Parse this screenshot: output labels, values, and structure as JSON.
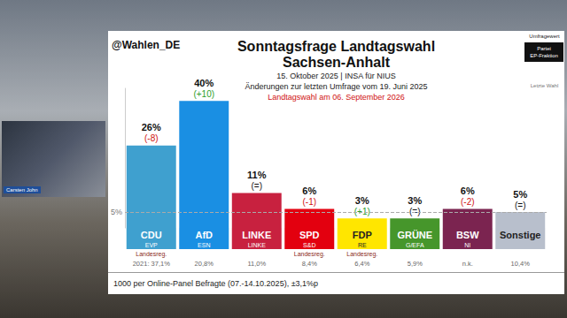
{
  "chart_data": {
    "type": "bar",
    "title": "Sonntagsfrage Landtagswahl\nSachsen-Anhalt",
    "subtitle": [
      "15. Oktober 2025 | INSA für NIUS",
      "Änderungen zur letzten Umfrage vom 19. Juni 2025"
    ],
    "note": "Landtagswahl am 06. September 2026",
    "source": "@Wahlen_DE",
    "footnote": "1000 per Online-Panel Befragte (07.-14.10.2025), ±3,1%p",
    "key": {
      "title": "Umfragewert",
      "lines": [
        "Partei",
        "EP-Fraktion"
      ],
      "footer": "Letzte Wahl"
    },
    "presenter": "Carsten John",
    "categories": [
      "CDU",
      "AfD",
      "LINKE",
      "SPD",
      "FDP",
      "GRÜNE",
      "BSW",
      "Sonstige"
    ],
    "groups": [
      "EVP",
      "ESN",
      "LINKE",
      "S&D",
      "RE",
      "G/EFA",
      "NI",
      null
    ],
    "values": [
      26,
      40,
      11,
      6,
      3,
      3,
      6,
      5
    ],
    "value_labels": [
      "26%",
      "40%",
      "11%",
      "6%",
      "3%",
      "3%",
      "6%",
      "5%"
    ],
    "changes": [
      "(-8)",
      "(+10)",
      "(=)",
      "(-1)",
      "(+1)",
      "(=)",
      "(-2)",
      "(=)"
    ],
    "government": [
      "Landesreg.",
      null,
      null,
      "Landesreg.",
      "Landesreg.",
      null,
      null,
      null
    ],
    "last_election": [
      "2021: 37,1%",
      "20,8%",
      "11,0%",
      "8,4%",
      "6,4%",
      "5,9%",
      "n.k.",
      "10,4%"
    ],
    "colors": [
      "#3fa0cf",
      "#1a8fe3",
      "#c8213f",
      "#e3000f",
      "#ffe600",
      "#46962b",
      "#7b2450",
      "#b8bfcc"
    ],
    "ylim": [
      0,
      44
    ],
    "yticks": [
      {
        "value": 5,
        "label": "5%"
      }
    ],
    "data_labels": true
  }
}
